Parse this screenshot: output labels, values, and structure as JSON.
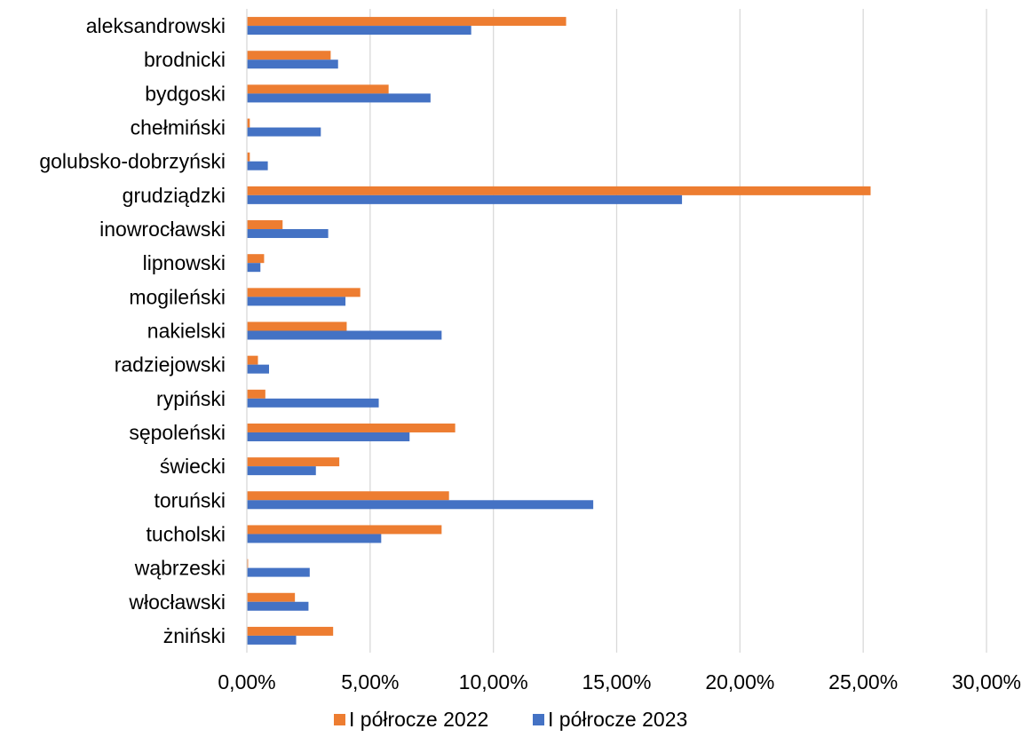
{
  "chart_data": {
    "type": "bar",
    "orientation": "horizontal",
    "categories": [
      "aleksandrowski",
      "brodnicki",
      "bydgoski",
      "chełmiński",
      "golubsko-dobrzyński",
      "grudziądzki",
      "inowrocławski",
      "lipnowski",
      "mogileński",
      "nakielski",
      "radziejowski",
      "rypiński",
      "sępoleński",
      "świecki",
      "toruński",
      "tucholski",
      "wąbrzeski",
      "włocławski",
      "żniński"
    ],
    "series": [
      {
        "name": "I półrocze 2022",
        "color": "#ED7D31",
        "values": [
          12.95,
          3.4,
          5.75,
          0.12,
          0.12,
          25.3,
          1.45,
          0.7,
          4.6,
          4.05,
          0.45,
          0.75,
          8.45,
          3.75,
          8.2,
          7.9,
          0.05,
          1.95,
          3.5
        ]
      },
      {
        "name": "I półrocze 2023",
        "color": "#4472C4",
        "values": [
          9.1,
          3.7,
          7.45,
          3.0,
          0.85,
          17.65,
          3.3,
          0.55,
          4.0,
          7.9,
          0.9,
          5.35,
          6.6,
          2.8,
          14.05,
          5.45,
          2.55,
          2.5,
          2.0
        ]
      }
    ],
    "xlim": [
      0,
      30
    ],
    "x_ticks": [
      "0,00%",
      "5,00%",
      "10,00%",
      "15,00%",
      "20,00%",
      "25,00%",
      "30,00%"
    ],
    "grid": true,
    "legend_position": "bottom",
    "title": "",
    "xlabel": "",
    "ylabel": ""
  }
}
